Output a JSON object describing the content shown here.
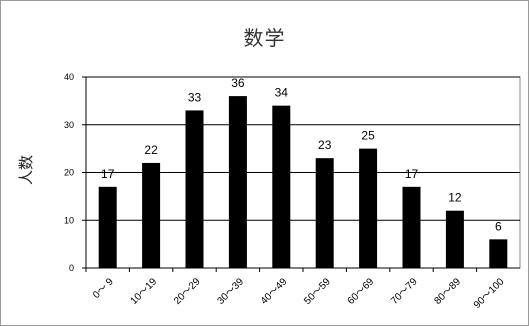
{
  "chart_data": {
    "type": "bar",
    "title": "数学",
    "xlabel": "",
    "ylabel": "人数",
    "ylim": [
      0,
      40
    ],
    "yticks": [
      "0",
      "10",
      "20",
      "30",
      "40"
    ],
    "grid": true,
    "categories": [
      "0～ 9",
      "10～19",
      "20～29",
      "30～39",
      "40～49",
      "50～59",
      "60～69",
      "70～79",
      "80～89",
      "90～100"
    ],
    "values": [
      17,
      22,
      33,
      36,
      34,
      23,
      25,
      17,
      12,
      6
    ],
    "data_labels": [
      "17",
      "22",
      "33",
      "36",
      "34",
      "23",
      "25",
      "17",
      "12",
      "6"
    ],
    "bar_color": "#000000",
    "grid_color": "#000000"
  }
}
